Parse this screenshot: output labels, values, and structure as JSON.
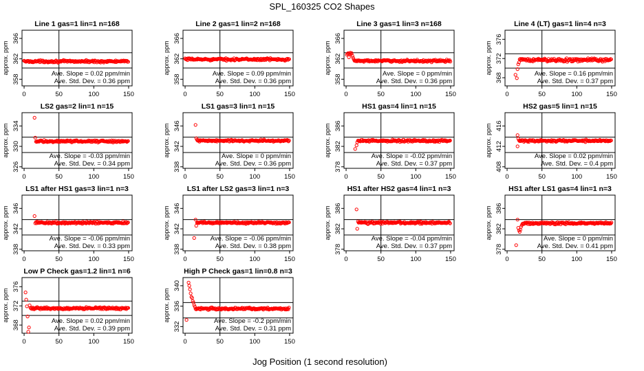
{
  "figure_title": "SPL_160325  CO2 Shapes",
  "x_axis_label": "Jog Position (1 second resolution)",
  "chart_data": [
    {
      "type": "scatter",
      "title": "Line 1 gas=1 lin=1 n=168",
      "ylabel": "approx. ppm",
      "xlim": [
        -3,
        155
      ],
      "ylim": [
        356.7,
        367.6
      ],
      "yticks": [
        "358",
        "362",
        "366"
      ],
      "xticks": [
        "0",
        "50",
        "100",
        "150"
      ],
      "hlines": [
        363.2,
        360.2
      ],
      "vline": 50,
      "baseline": 361.5,
      "noise": 0.3,
      "xstart": 0,
      "xend": 150,
      "extra_points": [],
      "slope_text": "Ave. Slope = 0.02  ppm/min",
      "std_text": "Ave. Std. Dev. = 0.36  ppm"
    },
    {
      "type": "scatter",
      "title": "Line 2 gas=1 lin=2 n=168",
      "ylabel": "approx. ppm",
      "xlim": [
        -3,
        155
      ],
      "ylim": [
        356.7,
        367.6
      ],
      "yticks": [
        "358",
        "362",
        "366"
      ],
      "xticks": [
        "0",
        "50",
        "100",
        "150"
      ],
      "hlines": [
        363.2,
        360.2
      ],
      "vline": 50,
      "baseline": 361.9,
      "noise": 0.3,
      "xstart": 0,
      "xend": 150,
      "extra_points": [],
      "slope_text": "Ave. Slope = 0.09  ppm/min",
      "std_text": "Ave. Std. Dev. = 0.36  ppm"
    },
    {
      "type": "scatter",
      "title": "Line 3 gas=1 lin=3 n=168",
      "ylabel": "approx. ppm",
      "xlim": [
        -3,
        155
      ],
      "ylim": [
        356.7,
        367.6
      ],
      "yticks": [
        "358",
        "362",
        "366"
      ],
      "xticks": [
        "0",
        "50",
        "100",
        "150"
      ],
      "hlines": [
        363.2,
        360.2
      ],
      "vline": 50,
      "baseline": 361.6,
      "noise": 0.3,
      "xstart": 12,
      "xend": 150,
      "extra_points": [
        [
          1,
          362.8
        ],
        [
          2,
          363.0
        ],
        [
          3,
          363.1
        ],
        [
          4,
          362.3
        ],
        [
          5,
          363.0
        ],
        [
          6,
          363.2
        ],
        [
          7,
          362.9
        ],
        [
          8,
          363.1
        ],
        [
          9,
          362.6
        ],
        [
          10,
          362.2
        ],
        [
          11,
          361.9
        ]
      ],
      "slope_text": "Ave. Slope = 0  ppm/min",
      "std_text": "Ave. Std. Dev. = 0.36  ppm"
    },
    {
      "type": "scatter",
      "title": "Line 4 (LT) gas=1 lin=4 n=3",
      "ylabel": "approx. ppm",
      "xlim": [
        -3,
        155
      ],
      "ylim": [
        366.3,
        377.9
      ],
      "yticks": [
        "368",
        "372",
        "376"
      ],
      "xticks": [
        "0",
        "50",
        "100",
        "150"
      ],
      "hlines": [
        373.0,
        370.0
      ],
      "vline": 50,
      "baseline": 371.7,
      "noise": 0.5,
      "xstart": 18,
      "xend": 150,
      "extra_points": [
        [
          12,
          368.6
        ],
        [
          14,
          367.9
        ],
        [
          15,
          369.8
        ],
        [
          16,
          370.8
        ],
        [
          17,
          371.2
        ]
      ],
      "slope_text": "Ave. Slope = 0.16  ppm/min",
      "std_text": "Ave. Std. Dev. = 0.37  ppm"
    },
    {
      "type": "scatter",
      "title": "LS2 gas=2 lin=1 n=15",
      "ylabel": "approx. ppm",
      "xlim": [
        -3,
        155
      ],
      "ylim": [
        325.7,
        336.6
      ],
      "yticks": [
        "326",
        "330",
        "334"
      ],
      "xticks": [
        "0",
        "50",
        "100",
        "150"
      ],
      "hlines": [
        331.8,
        328.8
      ],
      "vline": 50,
      "baseline": 331.0,
      "noise": 0.3,
      "xstart": 17,
      "xend": 150,
      "extra_points": [
        [
          15,
          335.6
        ],
        [
          16,
          331.7
        ]
      ],
      "slope_text": "Ave. Slope = -0.03  ppm/min",
      "std_text": "Ave. Std. Dev. = 0.34  ppm"
    },
    {
      "type": "scatter",
      "title": "LS1 gas=3 lin=1 n=15",
      "ylabel": "approx. ppm",
      "xlim": [
        -3,
        155
      ],
      "ylim": [
        337.7,
        348.6
      ],
      "yticks": [
        "338",
        "342",
        "346"
      ],
      "xticks": [
        "0",
        "50",
        "100",
        "150"
      ],
      "hlines": [
        343.8,
        340.8
      ],
      "vline": 50,
      "baseline": 343.1,
      "noise": 0.3,
      "xstart": 17,
      "xend": 150,
      "extra_points": [
        [
          15,
          346.2
        ],
        [
          16,
          343.6
        ]
      ],
      "slope_text": "Ave. Slope = 0  ppm/min",
      "std_text": "Ave. Std. Dev. = 0.36  ppm"
    },
    {
      "type": "scatter",
      "title": "HS1 gas=4 lin=1 n=15",
      "ylabel": "approx. ppm",
      "xlim": [
        -3,
        155
      ],
      "ylim": [
        377.7,
        388.6
      ],
      "yticks": [
        "378",
        "382",
        "386"
      ],
      "xticks": [
        "0",
        "50",
        "100",
        "150"
      ],
      "hlines": [
        383.8,
        380.8
      ],
      "vline": 50,
      "baseline": 383.1,
      "noise": 0.3,
      "xstart": 17,
      "xend": 150,
      "extra_points": [
        [
          13,
          381.5
        ],
        [
          15,
          382.2
        ],
        [
          16,
          382.8
        ]
      ],
      "slope_text": "Ave. Slope = -0.02  ppm/min",
      "std_text": "Ave. Std. Dev. = 0.37  ppm"
    },
    {
      "type": "scatter",
      "title": "HS2 gas=5 lin=1 n=15",
      "ylabel": "approx. ppm",
      "xlim": [
        -3,
        155
      ],
      "ylim": [
        407.7,
        418.6
      ],
      "yticks": [
        "408",
        "412",
        "416"
      ],
      "xticks": [
        "0",
        "50",
        "100",
        "150"
      ],
      "hlines": [
        413.8,
        410.8
      ],
      "vline": 50,
      "baseline": 413.1,
      "noise": 0.3,
      "xstart": 17,
      "xend": 150,
      "extra_points": [
        [
          15,
          414.2
        ],
        [
          15,
          412.0
        ],
        [
          16,
          413.5
        ]
      ],
      "slope_text": "Ave. Slope = 0.02  ppm/min",
      "std_text": "Ave. Std. Dev. = 0.4  ppm"
    },
    {
      "type": "scatter",
      "title": "LS1 after HS1 gas=3 lin=1 n=3",
      "ylabel": "approx. ppm",
      "xlim": [
        -3,
        155
      ],
      "ylim": [
        337.7,
        348.6
      ],
      "yticks": [
        "338",
        "342",
        "346"
      ],
      "xticks": [
        "0",
        "50",
        "100",
        "150"
      ],
      "hlines": [
        343.8,
        340.8
      ],
      "vline": 50,
      "baseline": 343.2,
      "noise": 0.3,
      "xstart": 17,
      "xend": 150,
      "extra_points": [
        [
          15,
          344.5
        ],
        [
          16,
          343.1
        ]
      ],
      "slope_text": "Ave. Slope = -0.06  ppm/min",
      "std_text": "Ave. Std. Dev. = 0.33  ppm"
    },
    {
      "type": "scatter",
      "title": "LS1 after LS2 gas=3 lin=1 n=3",
      "ylabel": "approx. ppm",
      "xlim": [
        -3,
        155
      ],
      "ylim": [
        337.7,
        348.6
      ],
      "yticks": [
        "338",
        "342",
        "346"
      ],
      "xticks": [
        "0",
        "50",
        "100",
        "150"
      ],
      "hlines": [
        343.8,
        340.8
      ],
      "vline": 50,
      "baseline": 343.2,
      "noise": 0.3,
      "xstart": 17,
      "xend": 150,
      "extra_points": [
        [
          13,
          340.2
        ],
        [
          15,
          343.8
        ],
        [
          16,
          342.6
        ]
      ],
      "slope_text": "Ave. Slope = -0.06  ppm/min",
      "std_text": "Ave. Std. Dev. = 0.38  ppm"
    },
    {
      "type": "scatter",
      "title": "HS1 after HS2 gas=4 lin=1 n=3",
      "ylabel": "approx. ppm",
      "xlim": [
        -3,
        155
      ],
      "ylim": [
        377.7,
        388.6
      ],
      "yticks": [
        "378",
        "382",
        "386"
      ],
      "xticks": [
        "0",
        "50",
        "100",
        "150"
      ],
      "hlines": [
        383.8,
        380.8
      ],
      "vline": 50,
      "baseline": 383.2,
      "noise": 0.3,
      "xstart": 17,
      "xend": 150,
      "extra_points": [
        [
          15,
          385.8
        ],
        [
          16,
          382.0
        ]
      ],
      "slope_text": "Ave. Slope = -0.04  ppm/min",
      "std_text": "Ave. Std. Dev. = 0.37  ppm"
    },
    {
      "type": "scatter",
      "title": "HS1 after LS1 gas=4 lin=1 n=3",
      "ylabel": "approx. ppm",
      "xlim": [
        -3,
        155
      ],
      "ylim": [
        377.7,
        388.6
      ],
      "yticks": [
        "378",
        "382",
        "386"
      ],
      "xticks": [
        "0",
        "50",
        "100",
        "150"
      ],
      "hlines": [
        383.8,
        380.8
      ],
      "vline": 50,
      "baseline": 383.1,
      "noise": 0.3,
      "xstart": 22,
      "xend": 150,
      "extra_points": [
        [
          13,
          378.8
        ],
        [
          15,
          383.8
        ],
        [
          16,
          382.2
        ],
        [
          17,
          381.7
        ],
        [
          18,
          381.4
        ],
        [
          19,
          381.8
        ],
        [
          20,
          382.4
        ],
        [
          21,
          382.7
        ]
      ],
      "slope_text": "Ave. Slope = 0  ppm/min",
      "std_text": "Ave. Std. Dev. = 0.41  ppm"
    },
    {
      "type": "scatter",
      "title": "Low P Check gas=1.2 lin=1 n=6",
      "ylabel": "approx. ppm",
      "xlim": [
        -3,
        155
      ],
      "ylim": [
        366.3,
        377.9
      ],
      "yticks": [
        "368",
        "372",
        "376"
      ],
      "xticks": [
        "0",
        "50",
        "100",
        "150"
      ],
      "hlines": [
        373.0,
        370.0
      ],
      "vline": 50,
      "baseline": 371.5,
      "noise": 0.3,
      "xstart": 10,
      "xend": 150,
      "extra_points": [
        [
          2,
          374.8
        ],
        [
          3,
          373.3
        ],
        [
          4,
          371.9
        ],
        [
          5,
          369.8
        ],
        [
          6,
          366.6
        ],
        [
          7,
          367.5
        ],
        [
          8,
          372.1
        ],
        [
          9,
          371.6
        ]
      ],
      "slope_text": "Ave. Slope = 0.02  ppm/min",
      "std_text": "Ave. Std. Dev. = 0.39  ppm"
    },
    {
      "type": "scatter",
      "title": "High P Check gas=1 lin=0.8 n=3",
      "ylabel": "approx. ppm",
      "xlim": [
        -3,
        155
      ],
      "ylim": [
        330.7,
        341.6
      ],
      "yticks": [
        "332",
        "336",
        "340"
      ],
      "xticks": [
        "0",
        "50",
        "100",
        "150"
      ],
      "hlines": [
        336.7,
        333.7
      ],
      "vline": 50,
      "baseline": 335.5,
      "noise": 0.3,
      "xstart": 15,
      "xend": 150,
      "extra_points": [
        [
          2,
          333.3
        ],
        [
          5,
          340.6
        ],
        [
          6,
          340.0
        ],
        [
          7,
          339.3
        ],
        [
          8,
          338.5
        ],
        [
          9,
          337.8
        ],
        [
          10,
          337.6
        ],
        [
          11,
          337.0
        ],
        [
          12,
          336.7
        ],
        [
          13,
          336.2
        ],
        [
          14,
          335.9
        ]
      ],
      "slope_text": "Ave. Slope = -0.2  ppm/min",
      "std_text": "Ave. Std. Dev. = 0.31  ppm"
    }
  ]
}
